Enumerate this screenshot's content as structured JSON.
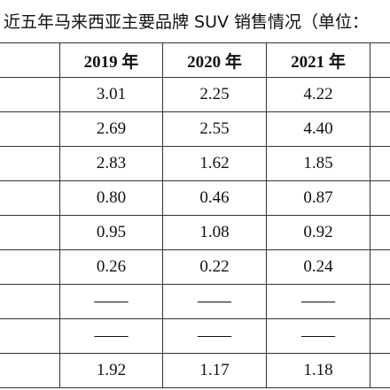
{
  "title": "近五年马来西亚主要品牌 SUV 销售情况（单位：",
  "table": {
    "header": [
      "2019 年",
      "2020 年",
      "2021 年"
    ],
    "rows": [
      [
        "3.01",
        "2.25",
        "4.22"
      ],
      [
        "2.69",
        "2.55",
        "4.40"
      ],
      [
        "2.83",
        "1.62",
        "1.85"
      ],
      [
        "0.80",
        "0.46",
        "0.87"
      ],
      [
        "0.95",
        "1.08",
        "0.92"
      ],
      [
        "0.26",
        "0.22",
        "0.24"
      ],
      [
        "——",
        "——",
        "——"
      ],
      [
        "——",
        "——",
        "——"
      ],
      [
        "1.92",
        "1.17",
        "1.18"
      ]
    ]
  }
}
